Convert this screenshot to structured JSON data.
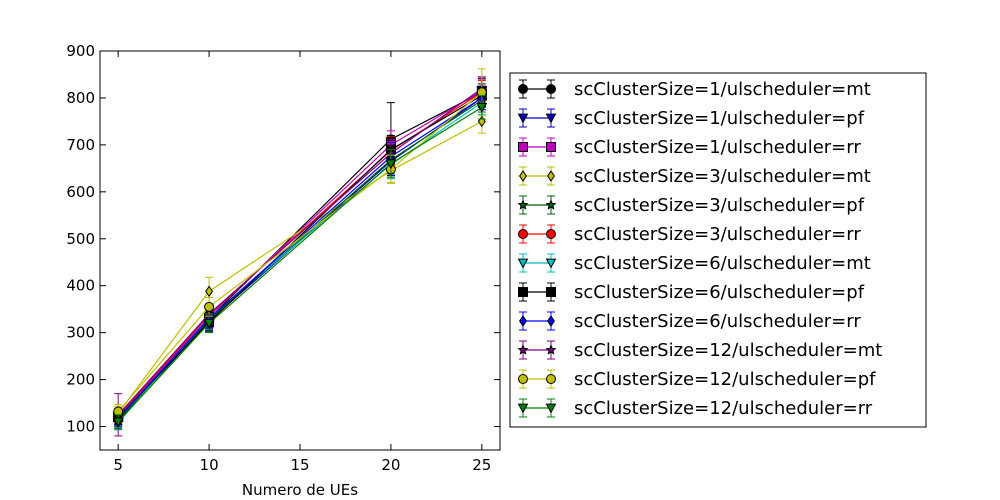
{
  "chart_data": {
    "type": "line",
    "title": "",
    "xlabel": "Numero de UEs",
    "ylabel": "",
    "xlim": [
      4,
      26
    ],
    "ylim": [
      50,
      900
    ],
    "x_ticks": [
      5,
      10,
      15,
      20,
      25
    ],
    "y_ticks": [
      100,
      200,
      300,
      400,
      500,
      600,
      700,
      800,
      900
    ],
    "x": [
      5,
      10,
      20,
      25
    ],
    "grid": false,
    "legend_position": "right, outside plot",
    "series": [
      {
        "name": "scClusterSize=1/ulscheduler=mt",
        "color": "#000000",
        "marker": "circle",
        "values": [
          118,
          330,
          712,
          812
        ],
        "errors": [
          15,
          25,
          78,
          30
        ]
      },
      {
        "name": "scClusterSize=1/ulscheduler=pf",
        "color": "#0000bf",
        "marker": "triangle-down",
        "values": [
          112,
          325,
          665,
          800
        ],
        "errors": [
          15,
          20,
          30,
          25
        ]
      },
      {
        "name": "scClusterSize=1/ulscheduler=rr",
        "color": "#bf00bf",
        "marker": "square",
        "values": [
          120,
          335,
          700,
          815
        ],
        "errors": [
          15,
          20,
          30,
          25
        ]
      },
      {
        "name": "scClusterSize=3/ulscheduler=mt",
        "color": "#bfbf00",
        "marker": "diamond",
        "values": [
          128,
          388,
          645,
          750
        ],
        "errors": [
          15,
          30,
          25,
          25
        ]
      },
      {
        "name": "scClusterSize=3/ulscheduler=pf",
        "color": "#006400",
        "marker": "star",
        "values": [
          115,
          328,
          668,
          795
        ],
        "errors": [
          15,
          20,
          30,
          25
        ]
      },
      {
        "name": "scClusterSize=3/ulscheduler=rr",
        "color": "#ff0000",
        "marker": "circle",
        "values": [
          122,
          338,
          688,
          812
        ],
        "errors": [
          15,
          20,
          30,
          25
        ]
      },
      {
        "name": "scClusterSize=6/ulscheduler=mt",
        "color": "#00bfbf",
        "marker": "triangle-down",
        "values": [
          108,
          332,
          658,
          790
        ],
        "errors": [
          15,
          20,
          30,
          25
        ]
      },
      {
        "name": "scClusterSize=6/ulscheduler=pf",
        "color": "#000000",
        "marker": "square",
        "values": [
          120,
          322,
          690,
          805
        ],
        "errors": [
          15,
          20,
          30,
          25
        ]
      },
      {
        "name": "scClusterSize=6/ulscheduler=rr",
        "color": "#0000ff",
        "marker": "diamond",
        "values": [
          118,
          330,
          675,
          800
        ],
        "errors": [
          15,
          20,
          30,
          25
        ]
      },
      {
        "name": "scClusterSize=12/ulscheduler=mt",
        "color": "#800080",
        "marker": "star",
        "values": [
          125,
          340,
          682,
          820
        ],
        "errors": [
          45,
          20,
          30,
          25
        ]
      },
      {
        "name": "scClusterSize=12/ulscheduler=pf",
        "color": "#bfbf00",
        "marker": "circle",
        "values": [
          132,
          355,
          648,
          812
        ],
        "errors": [
          15,
          20,
          30,
          50
        ]
      },
      {
        "name": "scClusterSize=12/ulscheduler=rr",
        "color": "#008000",
        "marker": "triangle-down",
        "values": [
          110,
          320,
          660,
          780
        ],
        "errors": [
          15,
          20,
          30,
          25
        ]
      }
    ]
  }
}
